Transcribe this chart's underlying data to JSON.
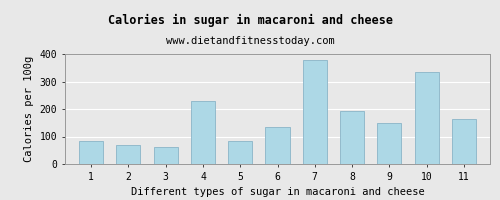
{
  "title": "Calories in sugar in macaroni and cheese",
  "subtitle": "www.dietandfitnesstoday.com",
  "xlabel": "Different types of sugar in macaroni and cheese",
  "ylabel": "Calories per 100g",
  "categories": [
    1,
    2,
    3,
    4,
    5,
    6,
    7,
    8,
    9,
    10,
    11
  ],
  "values": [
    82,
    70,
    63,
    228,
    82,
    135,
    378,
    191,
    150,
    335,
    165
  ],
  "bar_color": "#add8e6",
  "bar_edge_color": "#8ab4c8",
  "ylim": [
    0,
    400
  ],
  "yticks": [
    0,
    100,
    200,
    300,
    400
  ],
  "bg_color": "#e8e8e8",
  "plot_bg_color": "#e8e8e8",
  "title_fontsize": 8.5,
  "subtitle_fontsize": 7.5,
  "label_fontsize": 7.5,
  "tick_fontsize": 7
}
